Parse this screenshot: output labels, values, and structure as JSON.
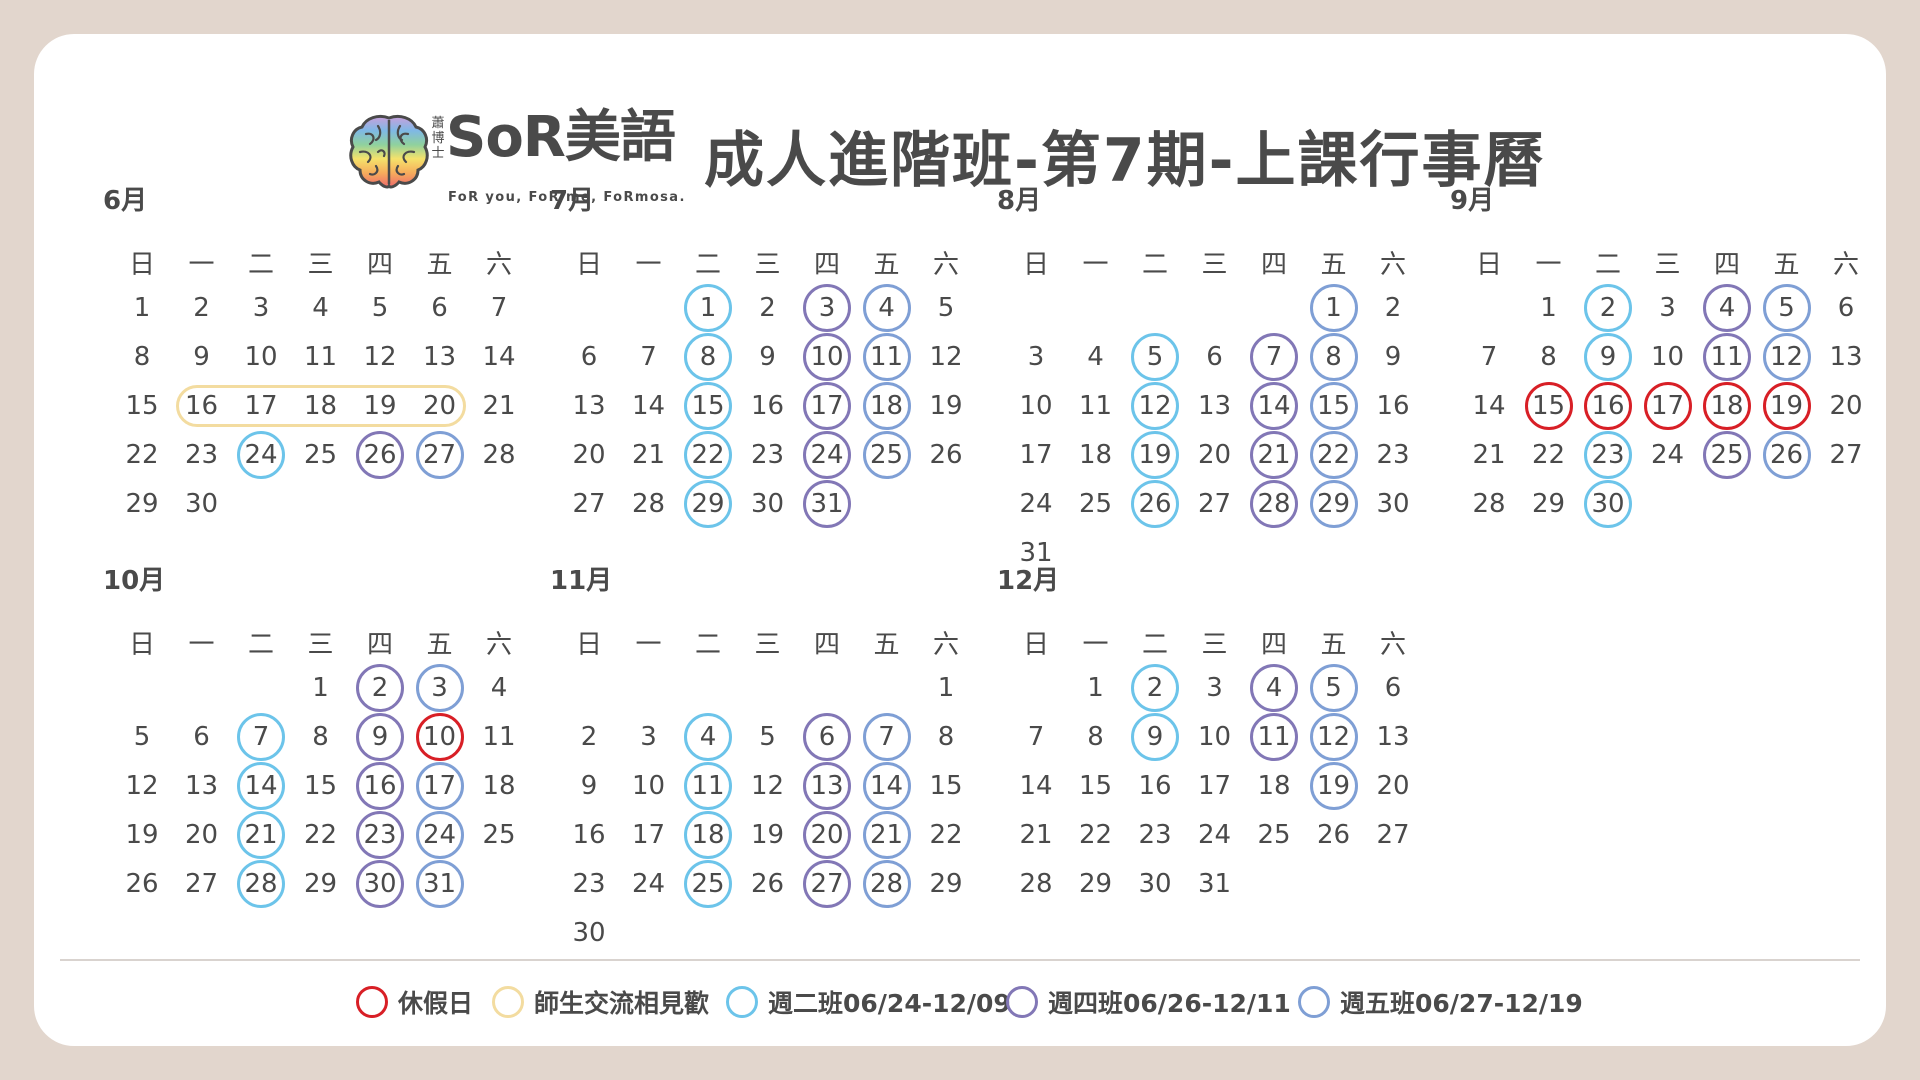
{
  "brand": {
    "vertical_name": [
      "蕭",
      "博",
      "士"
    ],
    "main": "SoR美語",
    "tagline": "FoR you, FoR me, FoRmosa."
  },
  "title": "成人進階班-第7期-上課行事曆",
  "weekdays": [
    "日",
    "一",
    "二",
    "三",
    "四",
    "五",
    "六"
  ],
  "colors": {
    "holiday": "#d81f26",
    "meetup": "#f3dca0",
    "tuesday_class": "#6cc4ea",
    "thursday_class": "#8277b6",
    "friday_class": "#7f9fd5"
  },
  "months": [
    {
      "label": "6月",
      "first_weekday": 0,
      "days": 30,
      "meetup": [
        16,
        17,
        18,
        19,
        20
      ],
      "tue": [
        24
      ],
      "thu": [
        26
      ],
      "fri": [
        27
      ],
      "holiday": []
    },
    {
      "label": "7月",
      "first_weekday": 2,
      "days": 31,
      "meetup": [],
      "tue": [
        1,
        8,
        15,
        22,
        29
      ],
      "thu": [
        3,
        10,
        17,
        24,
        31
      ],
      "fri": [
        4,
        11,
        18,
        25
      ],
      "holiday": []
    },
    {
      "label": "8月",
      "first_weekday": 5,
      "days": 31,
      "meetup": [],
      "tue": [
        5,
        12,
        19,
        26
      ],
      "thu": [
        7,
        14,
        21,
        28
      ],
      "fri": [
        1,
        8,
        15,
        22,
        29
      ],
      "holiday": []
    },
    {
      "label": "9月",
      "first_weekday": 1,
      "days": 30,
      "meetup": [],
      "tue": [
        2,
        9,
        23,
        30
      ],
      "thu": [
        4,
        11,
        25
      ],
      "fri": [
        5,
        12,
        26
      ],
      "holiday": [
        15,
        16,
        17,
        18,
        19
      ]
    },
    {
      "label": "10月",
      "first_weekday": 3,
      "days": 31,
      "meetup": [],
      "tue": [
        7,
        14,
        21,
        28
      ],
      "thu": [
        2,
        9,
        16,
        23,
        30
      ],
      "fri": [
        3,
        17,
        24,
        31
      ],
      "holiday": [
        10
      ]
    },
    {
      "label": "11月",
      "first_weekday": 6,
      "days": 30,
      "meetup": [],
      "tue": [
        4,
        11,
        18,
        25
      ],
      "thu": [
        6,
        13,
        20,
        27
      ],
      "fri": [
        7,
        14,
        21,
        28
      ],
      "holiday": []
    },
    {
      "label": "12月",
      "first_weekday": 1,
      "days": 31,
      "meetup": [],
      "tue": [
        2,
        9
      ],
      "thu": [
        4,
        11
      ],
      "fri": [
        5,
        12,
        19
      ],
      "holiday": []
    }
  ],
  "legend": [
    {
      "key": "holiday",
      "label": "休假日"
    },
    {
      "key": "meetup",
      "label": "師生交流相見歡"
    },
    {
      "key": "tuesday_class",
      "label": "週二班06/24-12/09"
    },
    {
      "key": "thursday_class",
      "label": "週四班06/26-12/11"
    },
    {
      "key": "friday_class",
      "label": "週五班06/27-12/19"
    }
  ]
}
